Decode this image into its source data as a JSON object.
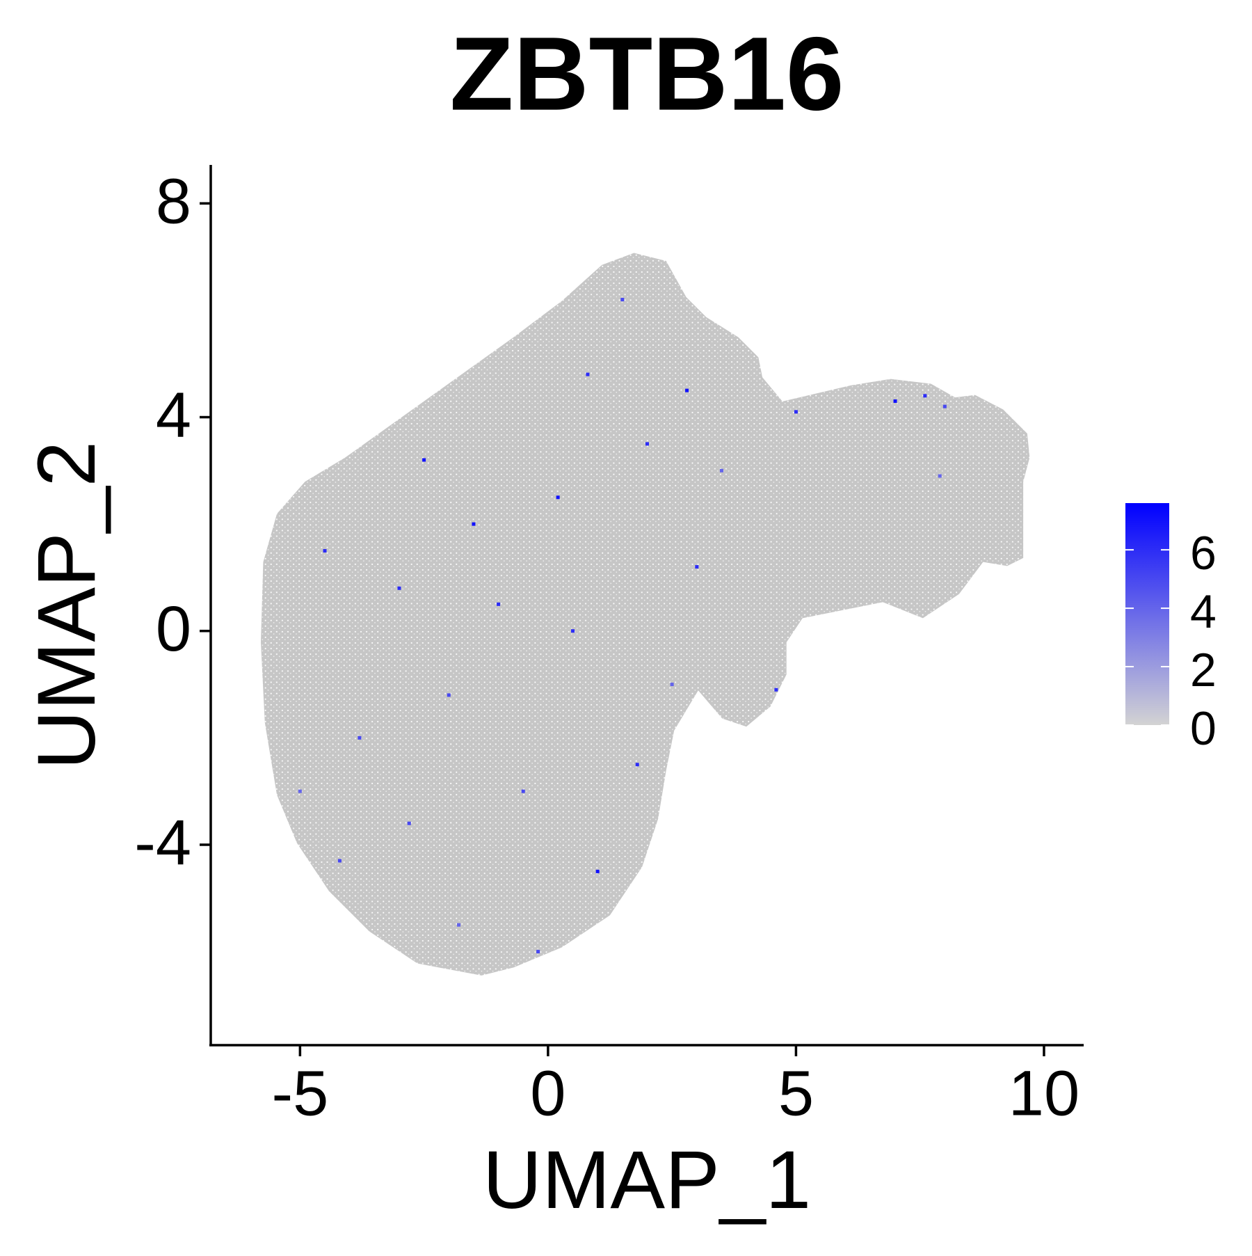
{
  "chart_data": {
    "type": "scatter",
    "title": "ZBTB16",
    "x_label": "UMAP_1",
    "y_label": "UMAP_2",
    "xlim": [
      -6.8,
      10.8
    ],
    "ylim": [
      -7.75,
      8.72
    ],
    "xticks": [
      -5,
      0,
      5,
      10
    ],
    "yticks": [
      -4,
      0,
      4,
      8
    ],
    "grid": false,
    "legend_position": "right",
    "x": [
      -4.5,
      -3.8,
      -2.5,
      -1.8,
      -1.0,
      -0.5,
      0.2,
      0.8,
      1.5,
      2.0,
      2.5,
      3.0,
      1.0,
      -2.0,
      -3.0,
      -5.0,
      4.6,
      7.0,
      7.6,
      8.0,
      7.9,
      5.0,
      -0.2,
      -1.5,
      1.8,
      -4.2,
      0.5,
      2.8,
      -2.8,
      3.5
    ],
    "y": [
      1.5,
      -2.0,
      3.2,
      -5.5,
      0.5,
      -3.0,
      2.5,
      4.8,
      6.2,
      3.5,
      -1.0,
      1.2,
      -4.5,
      -1.2,
      0.8,
      -3.0,
      -1.1,
      4.3,
      4.4,
      4.2,
      2.9,
      4.1,
      -6.0,
      2.0,
      -2.5,
      -4.3,
      0.0,
      4.5,
      -3.6,
      3.0
    ],
    "values": [
      6,
      5,
      7,
      4,
      6,
      5,
      7,
      6,
      5,
      6,
      4,
      6,
      7,
      5,
      6,
      4,
      6,
      7,
      6,
      5,
      4,
      6,
      5,
      7,
      6,
      5,
      6,
      7,
      5,
      4
    ],
    "colorbar": {
      "low_color": "#d3d3d3",
      "high_color": "#0000ff",
      "lim": [
        0,
        7.6
      ],
      "ticks": [
        0,
        2,
        4,
        6
      ]
    }
  }
}
